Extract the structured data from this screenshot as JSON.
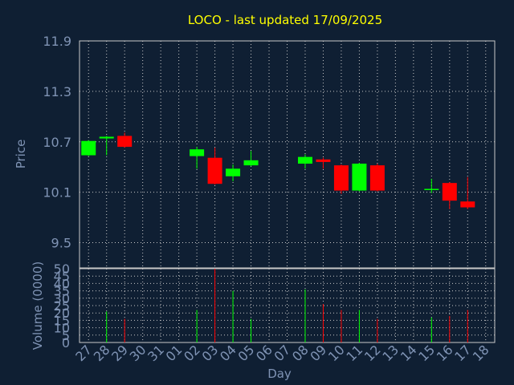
{
  "chart_data": [
    {
      "type": "candlestick",
      "title": "LOCO - last updated 17/09/2025",
      "ylabel": "Price",
      "xlabel": "",
      "ylim": [
        9.2,
        11.9
      ],
      "yticks": [
        "11.9",
        "11.3",
        "10.7",
        "10.1",
        "9.5"
      ],
      "grid": true,
      "colors": {
        "up": "#00ff00",
        "down": "#ff0000"
      },
      "candles": [
        {
          "day": "27",
          "open": 10.54,
          "high": 10.72,
          "low": 10.53,
          "close": 10.71
        },
        {
          "day": "28",
          "open": 10.74,
          "high": 10.77,
          "low": 10.54,
          "close": 10.76
        },
        {
          "day": "29",
          "open": 10.77,
          "high": 10.81,
          "low": 10.63,
          "close": 10.64
        },
        {
          "day": "02",
          "open": 10.53,
          "high": 10.64,
          "low": 10.38,
          "close": 10.61
        },
        {
          "day": "03",
          "open": 10.51,
          "high": 10.63,
          "low": 10.19,
          "close": 10.2
        },
        {
          "day": "04",
          "open": 10.29,
          "high": 10.43,
          "low": 10.23,
          "close": 10.38
        },
        {
          "day": "05",
          "open": 10.42,
          "high": 10.59,
          "low": 10.41,
          "close": 10.48
        },
        {
          "day": "08",
          "open": 10.44,
          "high": 10.55,
          "low": 10.38,
          "close": 10.52
        },
        {
          "day": "09",
          "open": 10.49,
          "high": 10.51,
          "low": 10.38,
          "close": 10.46
        },
        {
          "day": "10",
          "open": 10.42,
          "high": 10.43,
          "low": 10.08,
          "close": 10.12
        },
        {
          "day": "11",
          "open": 10.12,
          "high": 10.45,
          "low": 10.11,
          "close": 10.44
        },
        {
          "day": "12",
          "open": 10.42,
          "high": 10.44,
          "low": 10.11,
          "close": 10.12
        },
        {
          "day": "15",
          "open": 10.13,
          "high": 10.26,
          "low": 10.09,
          "close": 10.14
        },
        {
          "day": "16",
          "open": 10.21,
          "high": 10.22,
          "low": 9.9,
          "close": 10.0
        },
        {
          "day": "17",
          "open": 9.99,
          "high": 10.28,
          "low": 9.9,
          "close": 9.92
        }
      ]
    },
    {
      "type": "bar",
      "ylabel": "Volume (0000)",
      "xlabel": "Day",
      "ylim": [
        0,
        50
      ],
      "yticks": [
        "0",
        "5",
        "10",
        "15",
        "20",
        "25",
        "30",
        "35",
        "40",
        "45",
        "50"
      ],
      "grid": true,
      "categories": [
        "27",
        "28",
        "29",
        "30",
        "31",
        "01",
        "02",
        "03",
        "04",
        "05",
        "06",
        "07",
        "08",
        "09",
        "10",
        "11",
        "12",
        "13",
        "14",
        "15",
        "16",
        "17",
        "18"
      ],
      "series": [
        {
          "values": [
            0,
            21,
            16,
            0,
            0,
            0,
            22,
            50,
            35,
            16,
            0,
            0,
            36,
            26,
            22,
            22,
            16,
            0,
            0,
            17,
            18,
            22,
            0
          ]
        }
      ],
      "bar_colors": [
        "none",
        "#00ff00",
        "#ff0000",
        "none",
        "none",
        "none",
        "#00ff00",
        "#ff0000",
        "#00ff00",
        "#00ff00",
        "none",
        "none",
        "#00ff00",
        "#ff0000",
        "#ff0000",
        "#00ff00",
        "#ff0000",
        "none",
        "none",
        "#00ff00",
        "#ff0000",
        "#ff0000",
        "none"
      ]
    }
  ]
}
